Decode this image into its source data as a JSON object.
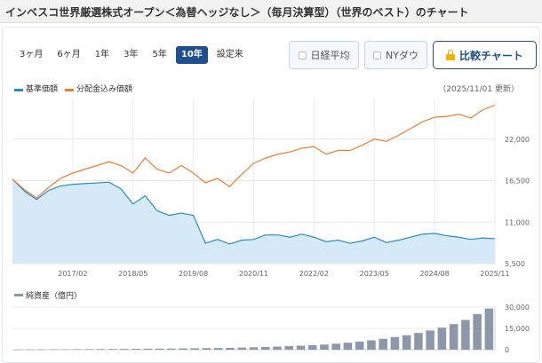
{
  "title": "インベスコ世界厳選株式オープン＜為替ヘッジなし＞（毎月決算型）（世界のベスト）のチャート",
  "range_tabs": [
    {
      "label": "3ヶ月",
      "active": false
    },
    {
      "label": "6ヶ月",
      "active": false
    },
    {
      "label": "1年",
      "active": false
    },
    {
      "label": "3年",
      "active": false
    },
    {
      "label": "5年",
      "active": false
    },
    {
      "label": "10年",
      "active": true
    },
    {
      "label": "設定来",
      "active": false
    }
  ],
  "toggles": {
    "nikkei_label": "日経平均",
    "nydow_label": "NYダウ",
    "compare_label": "比較チャート"
  },
  "legend": {
    "nav_label": "基準価額",
    "reinvested_label": "分配金込み価額",
    "as_of": "（2025/11/01 更新）"
  },
  "net_assets_legend": "純資産（億円）",
  "colors": {
    "nav": "#2b8cc4",
    "nav_fill": "#d6e9f7",
    "reinvested": "#ee7d2f",
    "net_assets": "#8c97aa",
    "active_tab": "#1f4f8f"
  },
  "chart_data": [
    {
      "type": "line",
      "x_tick_labels": [
        "2017/02",
        "2018/05",
        "2019/08",
        "2020/11",
        "2022/02",
        "2023/05",
        "2024/08",
        "2025/11"
      ],
      "y_tick_labels": [
        "22,000",
        "16,500",
        "11,000",
        "5,500"
      ],
      "ylim": [
        5500,
        27500
      ],
      "grid": true,
      "legend_position": "top-left",
      "series": [
        {
          "name": "基準価額",
          "x": [
            "2015/11",
            "2016/02",
            "2016/05",
            "2016/08",
            "2016/11",
            "2017/02",
            "2017/05",
            "2017/08",
            "2017/11",
            "2018/02",
            "2018/05",
            "2018/08",
            "2018/11",
            "2019/02",
            "2019/05",
            "2019/08",
            "2019/11",
            "2020/02",
            "2020/05",
            "2020/08",
            "2020/11",
            "2021/02",
            "2021/05",
            "2021/08",
            "2021/11",
            "2022/02",
            "2022/05",
            "2022/08",
            "2022/11",
            "2023/02",
            "2023/05",
            "2023/08",
            "2023/11",
            "2024/02",
            "2024/05",
            "2024/08",
            "2024/11",
            "2025/02",
            "2025/05",
            "2025/08",
            "2025/11"
          ],
          "values": [
            16700,
            15100,
            14000,
            15200,
            15800,
            16000,
            16100,
            16200,
            16300,
            15400,
            13400,
            14500,
            12500,
            11900,
            12200,
            11900,
            8200,
            8700,
            8100,
            8600,
            8700,
            9300,
            9300,
            9000,
            9400,
            9000,
            8400,
            8600,
            8200,
            8500,
            9000,
            8300,
            8600,
            9000,
            9400,
            9500,
            9200,
            9000,
            8700,
            8900,
            8800
          ]
        },
        {
          "name": "分配金込み価額",
          "x": [
            "2015/11",
            "2016/02",
            "2016/05",
            "2016/08",
            "2016/11",
            "2017/02",
            "2017/05",
            "2017/08",
            "2017/11",
            "2018/02",
            "2018/05",
            "2018/08",
            "2018/11",
            "2019/02",
            "2019/05",
            "2019/08",
            "2019/11",
            "2020/02",
            "2020/05",
            "2020/08",
            "2020/11",
            "2021/02",
            "2021/05",
            "2021/08",
            "2021/11",
            "2022/02",
            "2022/05",
            "2022/08",
            "2022/11",
            "2023/02",
            "2023/05",
            "2023/08",
            "2023/11",
            "2024/02",
            "2024/05",
            "2024/08",
            "2024/11",
            "2025/02",
            "2025/05",
            "2025/08",
            "2025/11"
          ],
          "values": [
            16700,
            15300,
            14200,
            15600,
            16800,
            17500,
            18000,
            18500,
            19000,
            18500,
            17500,
            19500,
            18000,
            17500,
            18500,
            17500,
            16200,
            16800,
            15700,
            17300,
            18800,
            19500,
            20000,
            20300,
            20800,
            21000,
            20000,
            20500,
            20500,
            21200,
            22000,
            21700,
            22500,
            23400,
            24300,
            24900,
            25000,
            25300,
            24800,
            25900,
            26500
          ]
        }
      ]
    },
    {
      "type": "bar",
      "title": "純資産（億円）",
      "y_tick_labels": [
        "30,000",
        "15,000",
        "0"
      ],
      "ylim": [
        0,
        30000
      ],
      "categories": [
        "2015/11",
        "2016/02",
        "2016/05",
        "2016/08",
        "2016/11",
        "2017/02",
        "2017/05",
        "2017/08",
        "2017/11",
        "2018/02",
        "2018/05",
        "2018/08",
        "2018/11",
        "2019/02",
        "2019/05",
        "2019/08",
        "2019/11",
        "2020/02",
        "2020/05",
        "2020/08",
        "2020/11",
        "2021/02",
        "2021/05",
        "2021/08",
        "2021/11",
        "2022/02",
        "2022/05",
        "2022/08",
        "2022/11",
        "2023/02",
        "2023/05",
        "2023/08",
        "2023/11",
        "2024/02",
        "2024/05",
        "2024/08",
        "2024/11",
        "2025/02",
        "2025/05",
        "2025/08",
        "2025/11"
      ],
      "values": [
        100,
        150,
        200,
        250,
        300,
        350,
        400,
        450,
        500,
        550,
        600,
        700,
        750,
        800,
        900,
        1000,
        1100,
        1200,
        1300,
        1500,
        1700,
        1900,
        2200,
        2500,
        2800,
        3200,
        3600,
        4200,
        4900,
        5700,
        6600,
        7700,
        8900,
        10200,
        11800,
        13500,
        15500,
        18000,
        21000,
        25000,
        29000
      ]
    }
  ]
}
